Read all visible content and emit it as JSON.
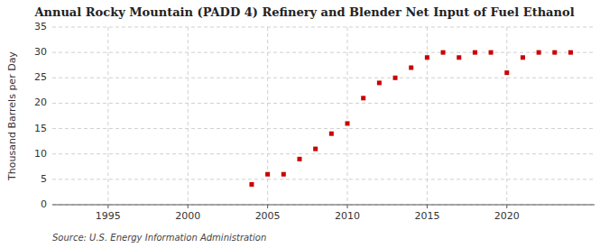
{
  "chart_data": {
    "type": "scatter",
    "title": "Annual Rocky Mountain (PADD 4) Refinery and Blender Net Input of Fuel Ethanol",
    "ylabel": "Thousand Barrels per Day",
    "source": "Source: U.S. Energy Information Administration",
    "x": [
      2004,
      2005,
      2006,
      2007,
      2008,
      2009,
      2010,
      2011,
      2012,
      2013,
      2014,
      2015,
      2016,
      2017,
      2018,
      2019,
      2020,
      2021,
      2022,
      2023,
      2024
    ],
    "values": [
      4.0,
      6.0,
      6.0,
      9.0,
      11.0,
      14.0,
      16.0,
      21.0,
      24.0,
      25.0,
      27.0,
      29.0,
      30.0,
      29.0,
      30.0,
      30.0,
      26.0,
      29.0,
      30.0,
      30.0,
      30.0
    ],
    "color": "#cc0000",
    "marker": "square",
    "xlim": [
      1991.5,
      2025.5
    ],
    "ylim": [
      0,
      35
    ],
    "xticks": [
      1995,
      2000,
      2005,
      2010,
      2015,
      2020
    ],
    "yticks": [
      0,
      5,
      10,
      15,
      20,
      25,
      30,
      35
    ],
    "grid": true
  }
}
